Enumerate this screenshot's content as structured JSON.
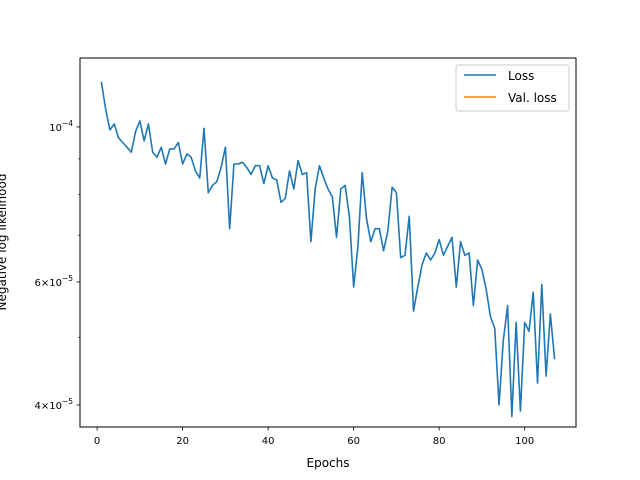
{
  "chart_data": {
    "type": "line",
    "title": "",
    "xlabel": "Epochs",
    "ylabel": "Negative log likelihood",
    "y_scale": "log",
    "xlim": [
      -4,
      112
    ],
    "ylim": [
      3.72e-05,
      0.0001255
    ],
    "grid": false,
    "legend_position": "top-right",
    "x_ticks": [
      {
        "value": 0,
        "label": "0"
      },
      {
        "value": 20,
        "label": "20"
      },
      {
        "value": 40,
        "label": "40"
      },
      {
        "value": 60,
        "label": "60"
      },
      {
        "value": 80,
        "label": "80"
      },
      {
        "value": 100,
        "label": "100"
      }
    ],
    "y_major_ticks": [
      {
        "value": 4e-05,
        "mantissa": "4",
        "exponent": "−5"
      },
      {
        "value": 6e-05,
        "mantissa": "6",
        "exponent": "−5"
      },
      {
        "value": 0.0001,
        "mantissa": "",
        "exponent": "−4"
      }
    ],
    "y_minor_ticks": [
      5e-05,
      7e-05,
      8e-05,
      9e-05
    ],
    "series": [
      {
        "name": "Loss",
        "color": "#1f77b4",
        "x": [
          1,
          2,
          3,
          4,
          5,
          6,
          7,
          8,
          9,
          10,
          11,
          12,
          13,
          14,
          15,
          16,
          17,
          18,
          19,
          20,
          21,
          22,
          23,
          24,
          25,
          26,
          27,
          28,
          29,
          30,
          31,
          32,
          33,
          34,
          35,
          36,
          37,
          38,
          39,
          40,
          41,
          42,
          43,
          44,
          45,
          46,
          47,
          48,
          49,
          50,
          51,
          52,
          53,
          54,
          55,
          56,
          57,
          58,
          59,
          60,
          61,
          62,
          63,
          64,
          65,
          66,
          67,
          68,
          69,
          70,
          71,
          72,
          73,
          74,
          75,
          76,
          77,
          78,
          79,
          80,
          81,
          82,
          83,
          84,
          85,
          86,
          87,
          88,
          89,
          90,
          91,
          92,
          93,
          94,
          95,
          96,
          97,
          98,
          99,
          100,
          101,
          102,
          103,
          104,
          105,
          106,
          107
        ],
        "y": [
          0.000116,
          0.000106,
          9.9e-05,
          0.000101,
          9.65e-05,
          9.5e-05,
          9.35e-05,
          9.2e-05,
          9.85e-05,
          0.000102,
          9.55e-05,
          0.000101,
          9.2e-05,
          9.05e-05,
          9.35e-05,
          8.85e-05,
          9.3e-05,
          9.3e-05,
          9.5e-05,
          8.85e-05,
          9.15e-05,
          9.05e-05,
          8.65e-05,
          8.45e-05,
          9.95e-05,
          8.05e-05,
          8.25e-05,
          8.35e-05,
          8.75e-05,
          9.35e-05,
          7.15e-05,
          8.85e-05,
          8.85e-05,
          8.9e-05,
          8.75e-05,
          8.55e-05,
          8.8e-05,
          8.8e-05,
          8.3e-05,
          8.8e-05,
          8.45e-05,
          8.4e-05,
          7.8e-05,
          7.9e-05,
          8.65e-05,
          8.15e-05,
          8.95e-05,
          8.55e-05,
          8.6e-05,
          6.85e-05,
          8.15e-05,
          8.8e-05,
          8.45e-05,
          8.15e-05,
          7.95e-05,
          6.95e-05,
          8.15e-05,
          8.25e-05,
          7.45e-05,
          5.9e-05,
          6.75e-05,
          8.6e-05,
          7.4e-05,
          6.85e-05,
          7.15e-05,
          7.15e-05,
          6.65e-05,
          7.1e-05,
          8.2e-05,
          8.05e-05,
          6.5e-05,
          6.55e-05,
          7.45e-05,
          5.45e-05,
          5.9e-05,
          6.35e-05,
          6.6e-05,
          6.45e-05,
          6.6e-05,
          6.9e-05,
          6.55e-05,
          6.75e-05,
          6.95e-05,
          5.9e-05,
          6.85e-05,
          6.55e-05,
          6.6e-05,
          5.55e-05,
          6.45e-05,
          6.25e-05,
          5.85e-05,
          5.35e-05,
          5.15e-05,
          4e-05,
          4.95e-05,
          5.55e-05,
          3.85e-05,
          5.25e-05,
          3.92e-05,
          5.25e-05,
          5.1e-05,
          5.8e-05,
          4.3e-05,
          5.95e-05,
          4.4e-05,
          5.4e-05,
          4.65e-05
        ]
      },
      {
        "name": "Val. loss",
        "color": "#ff7f0e",
        "x": [],
        "y": []
      }
    ]
  }
}
